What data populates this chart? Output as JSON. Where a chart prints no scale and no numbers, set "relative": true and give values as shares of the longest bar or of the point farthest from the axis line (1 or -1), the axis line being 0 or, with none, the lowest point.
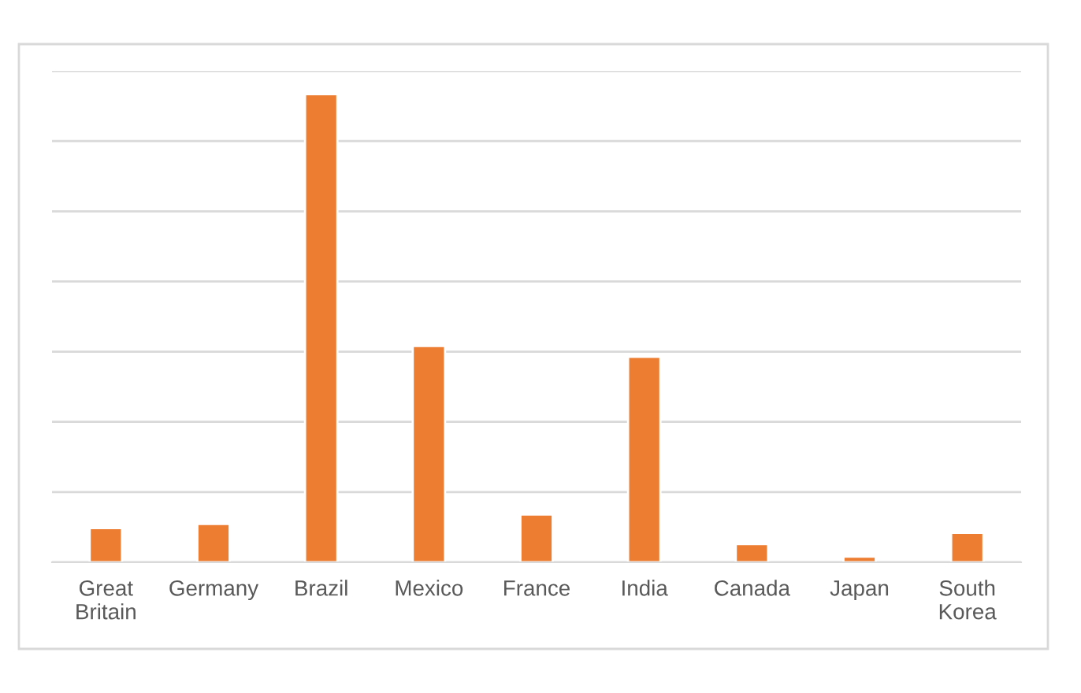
{
  "chart_data": {
    "type": "bar",
    "relative": true,
    "grid": "y",
    "categories": [
      "Great\nBritain",
      "Germany",
      "Brazil",
      "Mexico",
      "France",
      "India",
      "Canada",
      "Japan",
      "South\nKorea"
    ],
    "values": [
      0.073,
      0.082,
      1,
      0.462,
      0.102,
      0.439,
      0.039,
      0.012,
      0.063
    ],
    "color": "#ed7d31"
  }
}
